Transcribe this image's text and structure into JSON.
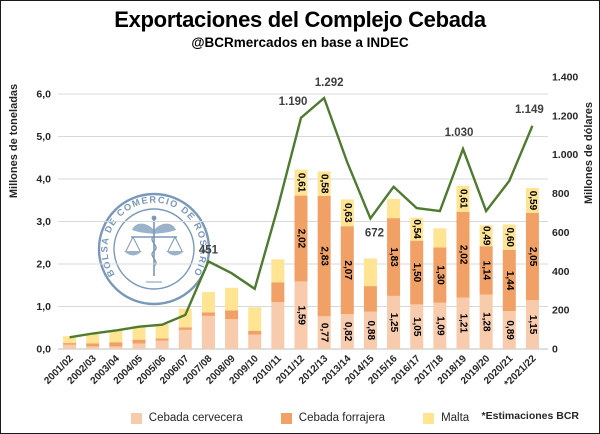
{
  "title": "Exportaciones del Complejo Cebada",
  "subtitle": "@BCRmercados en base a INDEC",
  "footnote": "*Estimaciones BCR",
  "watermark": {
    "text": "BOLSA DE COMERCIO DE ROSARIO",
    "color": "#5A7FA8"
  },
  "colors": {
    "cervecera": "#F8CBAD",
    "forrajera": "#F1A166",
    "malta": "#FFE494",
    "line": "#4E7B30",
    "grid": "#D9D9D9",
    "axis_line": "#BFBFBF",
    "tick_text": "#262626",
    "line_label_text": "#404040"
  },
  "chart_data": {
    "type": "combo",
    "bar_mode": "stacked",
    "grid": true,
    "legend_position": "bottom",
    "categories": [
      "2001/02",
      "2002/03",
      "2003/04",
      "2004/05",
      "2005/06",
      "2006/07",
      "2007/08",
      "2008/09",
      "2009/10",
      "2010/11",
      "2011/12",
      "2012/13",
      "2013/14",
      "2014/15",
      "2015/16",
      "2016/17",
      "2017/18",
      "2018/19",
      "2019/20",
      "2020/21",
      "*2021/22"
    ],
    "left_axis": {
      "title": "Millones de toneladas",
      "min": 0,
      "max": 6,
      "step": 1,
      "tick_labels": [
        "0,0",
        "1,0",
        "2,0",
        "3,0",
        "4,0",
        "5,0",
        "6,0"
      ]
    },
    "right_axis": {
      "title": "Millones de dólares",
      "min": 0,
      "max": 1400,
      "step": 200,
      "tick_labels": [
        "0",
        "200",
        "400",
        "600",
        "800",
        "1.000",
        "1.200",
        "1.400"
      ]
    },
    "bar_series": [
      {
        "name": "Cebada cervecera",
        "color": "#F8CBAD",
        "values": [
          0.1,
          0.06,
          0.06,
          0.13,
          0.2,
          0.45,
          0.78,
          0.7,
          0.34,
          1.1,
          1.59,
          0.77,
          0.82,
          0.88,
          1.25,
          1.05,
          1.09,
          1.21,
          1.28,
          0.89,
          1.15
        ],
        "labels": [
          null,
          null,
          null,
          null,
          null,
          null,
          null,
          null,
          null,
          null,
          "1,59",
          "0,77",
          "0,82",
          "0,88",
          "1,25",
          "1,05",
          "1,09",
          "1,21",
          "1,28",
          "0,89",
          "1,15"
        ]
      },
      {
        "name": "Cebada forrajera",
        "color": "#F1A166",
        "values": [
          0.04,
          0.07,
          0.1,
          0.09,
          0.05,
          0.06,
          0.08,
          0.21,
          0.09,
          0.47,
          2.02,
          2.83,
          2.07,
          0.6,
          1.83,
          1.5,
          1.3,
          2.02,
          1.14,
          1.44,
          2.05
        ],
        "labels": [
          null,
          null,
          null,
          null,
          null,
          null,
          null,
          null,
          null,
          null,
          "2,02",
          "2,83",
          "2,07",
          null,
          "1,83",
          "1,50",
          "1,30",
          "2,02",
          "1,14",
          "1,44",
          "2,05"
        ]
      },
      {
        "name": "Malta",
        "color": "#FFE494",
        "values": [
          0.16,
          0.22,
          0.28,
          0.32,
          0.34,
          0.44,
          0.48,
          0.53,
          0.55,
          0.54,
          0.61,
          0.58,
          0.63,
          0.65,
          0.45,
          0.54,
          0.45,
          0.61,
          0.49,
          0.6,
          0.59
        ],
        "labels": [
          null,
          null,
          null,
          null,
          null,
          null,
          null,
          null,
          null,
          null,
          "0,61",
          "0,58",
          "0,63",
          null,
          null,
          "0,54",
          null,
          "0,61",
          "0,49",
          "0,60",
          "0,59"
        ]
      }
    ],
    "line_series": {
      "name": "Millones de dólares",
      "color": "#4E7B30",
      "values": [
        60,
        80,
        95,
        115,
        125,
        175,
        451,
        390,
        310,
        730,
        1190,
        1292,
        960,
        672,
        835,
        725,
        710,
        1030,
        710,
        865,
        1149
      ],
      "labels": [
        null,
        null,
        null,
        null,
        null,
        null,
        "451",
        null,
        null,
        null,
        "1.190",
        "1.292",
        null,
        "672",
        null,
        null,
        null,
        "1.030",
        null,
        null,
        "1.149"
      ]
    }
  }
}
